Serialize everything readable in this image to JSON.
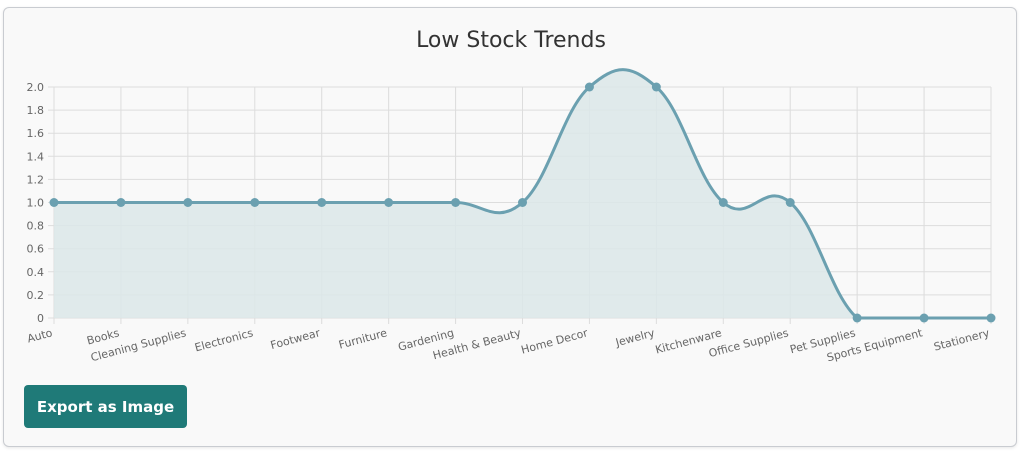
{
  "export_button": {
    "label": "Export as Image"
  },
  "colors": {
    "line": "#6ba0b0",
    "fill": "#dce7e9",
    "grid": "#dddddd",
    "tick_text": "#666666",
    "button": "#1f7a78"
  },
  "chart_data": {
    "type": "area",
    "title": "Low Stock Trends",
    "xlabel": "",
    "ylabel": "",
    "ylim": [
      0,
      2
    ],
    "grid": true,
    "legend": "none",
    "y_ticks": [
      "0",
      "0.2",
      "0.4",
      "0.6",
      "0.8",
      "1.0",
      "1.2",
      "1.4",
      "1.6",
      "1.8",
      "2.0"
    ],
    "categories": [
      "Auto",
      "Books",
      "Cleaning Supplies",
      "Electronics",
      "Footwear",
      "Furniture",
      "Gardening",
      "Health & Beauty",
      "Home Decor",
      "Jewelry",
      "Kitchenware",
      "Office Supplies",
      "Pet Supplies",
      "Sports Equipment",
      "Stationery"
    ],
    "values": [
      1,
      1,
      1,
      1,
      1,
      1,
      1,
      1,
      2,
      2,
      1,
      1,
      0,
      0,
      0
    ]
  }
}
